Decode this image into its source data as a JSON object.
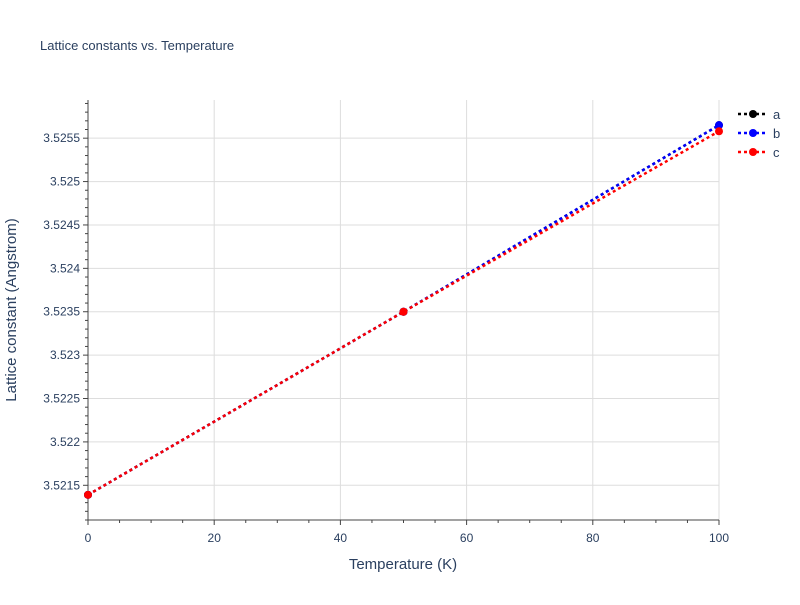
{
  "chart_data": {
    "type": "line",
    "title": "Lattice constants vs. Temperature",
    "xlabel": "Temperature (K)",
    "ylabel": "Lattice constant (Angstrom)",
    "xlim": [
      0,
      100
    ],
    "ylim": [
      3.5211,
      3.52594
    ],
    "x_ticks": [
      0,
      20,
      40,
      60,
      80,
      100
    ],
    "y_ticks": [
      3.5215,
      3.522,
      3.5225,
      3.523,
      3.5235,
      3.524,
      3.5245,
      3.525,
      3.5255
    ],
    "grid": true,
    "legend": "top-right",
    "line_style": "dotted with markers",
    "x": [
      0,
      50,
      100
    ],
    "series": [
      {
        "name": "a",
        "color": "#000000",
        "values": [
          3.52139,
          3.5235,
          3.52565
        ]
      },
      {
        "name": "b",
        "color": "#0000ff",
        "values": [
          3.52139,
          3.5235,
          3.52565
        ]
      },
      {
        "name": "c",
        "color": "#ff0000",
        "values": [
          3.52139,
          3.5235,
          3.52558
        ]
      }
    ]
  }
}
